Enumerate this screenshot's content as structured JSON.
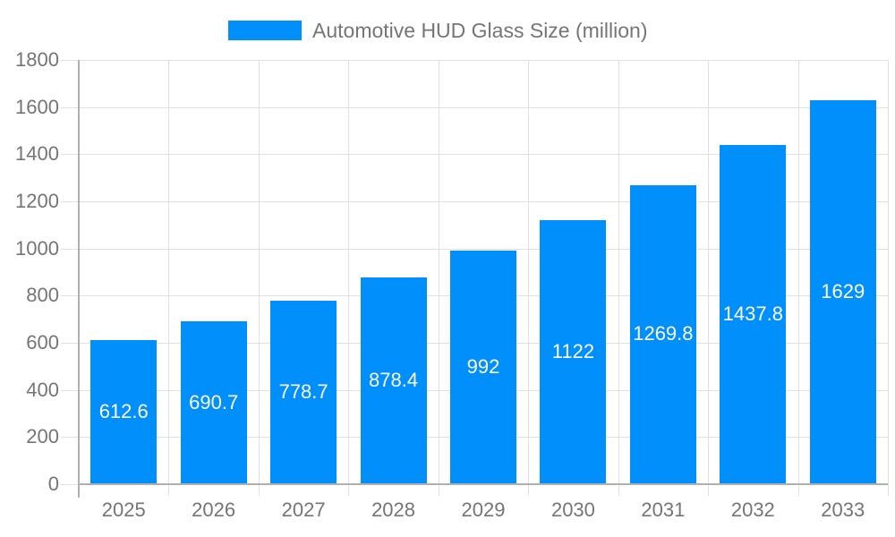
{
  "legend": {
    "label": "Automotive HUD Glass Size (million)"
  },
  "chart_data": {
    "type": "bar",
    "title": "Automotive HUD Glass Size (million)",
    "categories": [
      "2025",
      "2026",
      "2027",
      "2028",
      "2029",
      "2030",
      "2031",
      "2032",
      "2033"
    ],
    "values": [
      612.6,
      690.7,
      778.7,
      878.4,
      992,
      1122,
      1269.8,
      1437.8,
      1629
    ],
    "data_labels": [
      "612.6",
      "690.7",
      "778.7",
      "878.4",
      "992",
      "1122",
      "1269.8",
      "1437.8",
      "1629"
    ],
    "xlabel": "",
    "ylabel": "",
    "ylim": [
      0,
      1800
    ],
    "y_ticks": [
      0,
      200,
      400,
      600,
      800,
      1000,
      1200,
      1400,
      1600,
      1800
    ],
    "grid": true,
    "legend_position": "top",
    "colors": {
      "bar": "#008FFB",
      "data_label_text": "#ffffff",
      "axis_text": "#757575",
      "gridline": "#e0e0e0",
      "axis_line": "#b0b0b0",
      "background": "#ffffff"
    }
  }
}
